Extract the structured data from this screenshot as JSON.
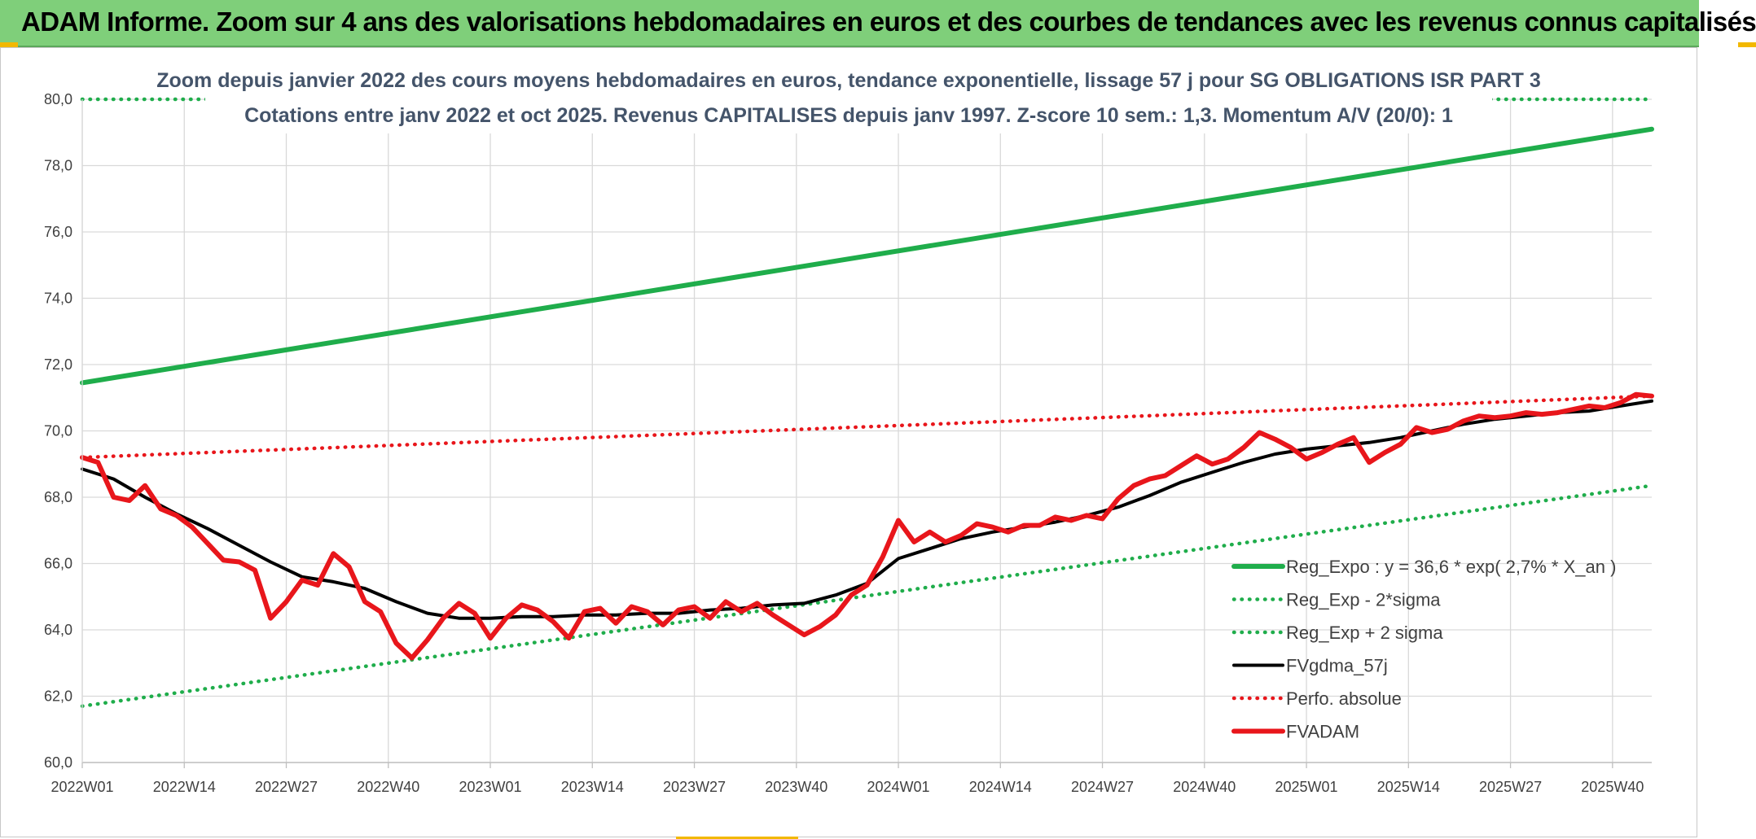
{
  "banner": {
    "title": "ADAM Informe. Zoom sur 4 ans des valorisations hebdomadaires en euros et des courbes de tendances avec les revenus connus capitalisés"
  },
  "chart_data": {
    "type": "line",
    "title": "Zoom depuis janvier 2022 des cours moyens hebdomadaires en euros, tendance exponentielle, lissage 57 j pour SG OBLIGATIONS ISR PART 3",
    "subtitle": "Cotations entre janv 2022 et oct 2025. Revenus CAPITALISES depuis janv 1997. Z-score 10 sem.: 1,3. Momentum A/V (20/0): 1",
    "xlabel": "",
    "ylabel": "",
    "ylim": [
      60,
      80
    ],
    "y_ticks": [
      "60,0",
      "62,0",
      "64,0",
      "66,0",
      "68,0",
      "70,0",
      "72,0",
      "74,0",
      "76,0",
      "78,0",
      "80,0"
    ],
    "x_ticks": [
      "2022W01",
      "2022W14",
      "2022W27",
      "2022W40",
      "2023W01",
      "2023W14",
      "2023W27",
      "2023W40",
      "2024W01",
      "2024W14",
      "2024W27",
      "2024W40",
      "2025W01",
      "2025W14",
      "2025W27",
      "2025W40"
    ],
    "x_tick_weeks": [
      0,
      13,
      26,
      39,
      52,
      65,
      78,
      91,
      104,
      117,
      130,
      143,
      156,
      169,
      182,
      195
    ],
    "n_weeks": 201,
    "grid": true,
    "legend_position": "bottom-right",
    "series": [
      {
        "name": "Reg_Expo : y = 36,6 * exp( 2,7% *  X_an )",
        "color": "#1fad4b",
        "style": "solid",
        "values": [
          [
            0,
            71.45
          ],
          [
            200,
            79.1
          ]
        ]
      },
      {
        "name": "Reg_Exp - 2*sigma",
        "color": "#1fad4b",
        "style": "dotted",
        "values": [
          [
            0,
            61.7
          ],
          [
            200,
            68.35
          ]
        ]
      },
      {
        "name": "Reg_Exp + 2 sigma",
        "color": "#1fad4b",
        "style": "dotted",
        "values": [
          [
            0,
            80.0
          ],
          [
            17,
            80.0
          ],
          [
            185,
            80.0
          ],
          [
            200,
            80.0
          ]
        ]
      },
      {
        "name": "FVgdma_57j",
        "color": "#000000",
        "style": "solid",
        "values": [
          [
            0,
            68.85
          ],
          [
            4,
            68.55
          ],
          [
            8,
            68.0
          ],
          [
            12,
            67.5
          ],
          [
            16,
            67.05
          ],
          [
            20,
            66.55
          ],
          [
            24,
            66.05
          ],
          [
            28,
            65.6
          ],
          [
            32,
            65.45
          ],
          [
            36,
            65.25
          ],
          [
            40,
            64.85
          ],
          [
            44,
            64.5
          ],
          [
            48,
            64.35
          ],
          [
            52,
            64.35
          ],
          [
            56,
            64.4
          ],
          [
            60,
            64.4
          ],
          [
            64,
            64.45
          ],
          [
            68,
            64.45
          ],
          [
            72,
            64.5
          ],
          [
            76,
            64.5
          ],
          [
            80,
            64.6
          ],
          [
            84,
            64.65
          ],
          [
            88,
            64.75
          ],
          [
            92,
            64.8
          ],
          [
            96,
            65.05
          ],
          [
            100,
            65.4
          ],
          [
            104,
            66.15
          ],
          [
            108,
            66.45
          ],
          [
            112,
            66.75
          ],
          [
            116,
            66.95
          ],
          [
            120,
            67.1
          ],
          [
            124,
            67.25
          ],
          [
            128,
            67.45
          ],
          [
            132,
            67.7
          ],
          [
            136,
            68.05
          ],
          [
            140,
            68.45
          ],
          [
            144,
            68.75
          ],
          [
            148,
            69.05
          ],
          [
            152,
            69.3
          ],
          [
            156,
            69.45
          ],
          [
            160,
            69.55
          ],
          [
            164,
            69.65
          ],
          [
            168,
            69.8
          ],
          [
            172,
            70.0
          ],
          [
            176,
            70.2
          ],
          [
            180,
            70.35
          ],
          [
            184,
            70.45
          ],
          [
            188,
            70.55
          ],
          [
            192,
            70.6
          ],
          [
            196,
            70.75
          ],
          [
            200,
            70.9
          ]
        ]
      },
      {
        "name": "Perfo. absolue",
        "color": "#e8161b",
        "style": "dotted",
        "values": [
          [
            0,
            69.2
          ],
          [
            200,
            71.05
          ]
        ]
      },
      {
        "name": "FVADAM",
        "color": "#e8161b",
        "style": "solid",
        "values": [
          [
            0,
            69.2
          ],
          [
            2,
            69.05
          ],
          [
            4,
            68.0
          ],
          [
            6,
            67.9
          ],
          [
            8,
            68.35
          ],
          [
            10,
            67.65
          ],
          [
            12,
            67.45
          ],
          [
            14,
            67.1
          ],
          [
            16,
            66.6
          ],
          [
            18,
            66.1
          ],
          [
            20,
            66.05
          ],
          [
            22,
            65.8
          ],
          [
            24,
            64.35
          ],
          [
            26,
            64.85
          ],
          [
            28,
            65.5
          ],
          [
            30,
            65.35
          ],
          [
            32,
            66.3
          ],
          [
            34,
            65.9
          ],
          [
            36,
            64.85
          ],
          [
            38,
            64.55
          ],
          [
            40,
            63.6
          ],
          [
            42,
            63.15
          ],
          [
            44,
            63.7
          ],
          [
            46,
            64.35
          ],
          [
            48,
            64.8
          ],
          [
            50,
            64.5
          ],
          [
            52,
            63.75
          ],
          [
            54,
            64.35
          ],
          [
            56,
            64.75
          ],
          [
            58,
            64.6
          ],
          [
            60,
            64.25
          ],
          [
            62,
            63.75
          ],
          [
            64,
            64.55
          ],
          [
            66,
            64.65
          ],
          [
            68,
            64.2
          ],
          [
            70,
            64.7
          ],
          [
            72,
            64.55
          ],
          [
            74,
            64.15
          ],
          [
            76,
            64.6
          ],
          [
            78,
            64.7
          ],
          [
            80,
            64.35
          ],
          [
            82,
            64.85
          ],
          [
            84,
            64.55
          ],
          [
            86,
            64.8
          ],
          [
            88,
            64.45
          ],
          [
            90,
            64.15
          ],
          [
            92,
            63.85
          ],
          [
            94,
            64.1
          ],
          [
            96,
            64.45
          ],
          [
            98,
            65.05
          ],
          [
            100,
            65.35
          ],
          [
            102,
            66.2
          ],
          [
            104,
            67.3
          ],
          [
            106,
            66.65
          ],
          [
            108,
            66.95
          ],
          [
            110,
            66.65
          ],
          [
            112,
            66.85
          ],
          [
            114,
            67.2
          ],
          [
            116,
            67.1
          ],
          [
            118,
            66.95
          ],
          [
            120,
            67.15
          ],
          [
            122,
            67.15
          ],
          [
            124,
            67.4
          ],
          [
            126,
            67.3
          ],
          [
            128,
            67.45
          ],
          [
            130,
            67.35
          ],
          [
            132,
            67.95
          ],
          [
            134,
            68.35
          ],
          [
            136,
            68.55
          ],
          [
            138,
            68.65
          ],
          [
            140,
            68.95
          ],
          [
            142,
            69.25
          ],
          [
            144,
            69.0
          ],
          [
            146,
            69.15
          ],
          [
            148,
            69.5
          ],
          [
            150,
            69.95
          ],
          [
            152,
            69.75
          ],
          [
            154,
            69.5
          ],
          [
            156,
            69.15
          ],
          [
            158,
            69.35
          ],
          [
            160,
            69.6
          ],
          [
            162,
            69.8
          ],
          [
            164,
            69.05
          ],
          [
            166,
            69.35
          ],
          [
            168,
            69.6
          ],
          [
            170,
            70.1
          ],
          [
            172,
            69.95
          ],
          [
            174,
            70.05
          ],
          [
            176,
            70.3
          ],
          [
            178,
            70.45
          ],
          [
            180,
            70.4
          ],
          [
            182,
            70.45
          ],
          [
            184,
            70.55
          ],
          [
            186,
            70.5
          ],
          [
            188,
            70.55
          ],
          [
            190,
            70.65
          ],
          [
            192,
            70.75
          ],
          [
            194,
            70.7
          ],
          [
            196,
            70.85
          ],
          [
            198,
            71.1
          ],
          [
            200,
            71.05
          ]
        ]
      }
    ]
  }
}
